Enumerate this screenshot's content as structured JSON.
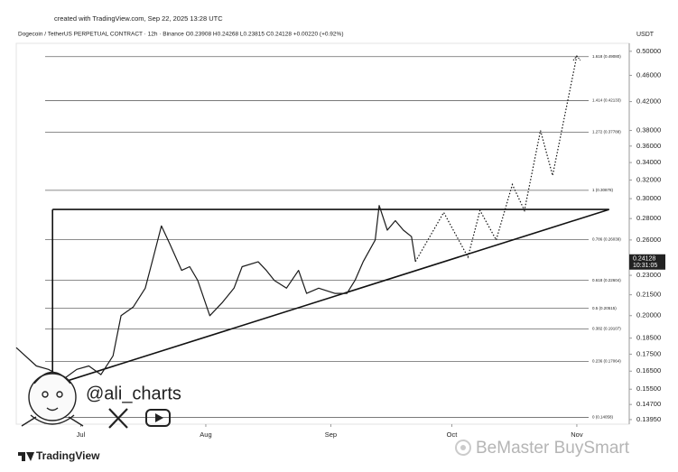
{
  "chart_data": {
    "type": "line",
    "header": "created with TradingView.com, Sep 22, 2025 13:28 UTC",
    "title": "Dogecoin / TetherUS PERPETUAL CONTRACT · 12h · Binance   O0.23908  H0.24268  L0.23815  C0.24128  +0.00220 (+0.92%)",
    "y_unit": "USDT",
    "log_scale": true,
    "xlim": [
      166,
      318
    ],
    "xticks": [
      {
        "value": 182,
        "label": "Jul"
      },
      {
        "value": 213,
        "label": "Aug"
      },
      {
        "value": 244,
        "label": "Sep"
      },
      {
        "value": 274,
        "label": "Oct"
      },
      {
        "value": 305,
        "label": "Nov"
      }
    ],
    "ylim": [
      0.1373,
      0.514
    ],
    "yticks": [
      {
        "value": 0.5,
        "label": "0.50000"
      },
      {
        "value": 0.46,
        "label": "0.46000"
      },
      {
        "value": 0.42,
        "label": "0.42000"
      },
      {
        "value": 0.38,
        "label": "0.38000"
      },
      {
        "value": 0.36,
        "label": "0.36000"
      },
      {
        "value": 0.34,
        "label": "0.34000"
      },
      {
        "value": 0.32,
        "label": "0.32000"
      },
      {
        "value": 0.3,
        "label": "0.30000"
      },
      {
        "value": 0.28,
        "label": "0.28000"
      },
      {
        "value": 0.26,
        "label": "0.26000"
      },
      {
        "value": 0.23,
        "label": "0.23000"
      },
      {
        "value": 0.215,
        "label": "0.21500"
      },
      {
        "value": 0.2,
        "label": "0.20000"
      },
      {
        "value": 0.185,
        "label": "0.18500"
      },
      {
        "value": 0.175,
        "label": "0.17500"
      },
      {
        "value": 0.165,
        "label": "0.16500"
      },
      {
        "value": 0.155,
        "label": "0.15500"
      },
      {
        "value": 0.147,
        "label": "0.14700"
      },
      {
        "value": 0.1395,
        "label": "0.13950"
      }
    ],
    "series": [
      {
        "color": "#1a1a1a",
        "x": [
          166,
          171,
          174,
          178,
          181,
          184,
          187,
          190,
          192,
          195,
          198,
          200,
          202,
          204,
          207,
          209,
          211,
          214,
          217,
          220,
          222,
          226,
          228,
          230,
          233,
          236,
          238,
          241,
          245,
          248,
          250,
          252,
          255,
          256,
          258,
          260,
          262,
          264,
          265
        ],
        "values": [
          0.179,
          0.168,
          0.166,
          0.161,
          0.166,
          0.168,
          0.163,
          0.174,
          0.2,
          0.206,
          0.22,
          0.245,
          0.273,
          0.257,
          0.234,
          0.237,
          0.226,
          0.2,
          0.209,
          0.22,
          0.237,
          0.241,
          0.234,
          0.226,
          0.22,
          0.234,
          0.216,
          0.22,
          0.216,
          0.216,
          0.226,
          0.241,
          0.26,
          0.293,
          0.269,
          0.278,
          0.269,
          0.263,
          0.24128
        ]
      }
    ],
    "triangle": {
      "x": [
        175,
        175,
        313,
        175
      ],
      "values": [
        0.289,
        0.157,
        0.289,
        0.289
      ]
    },
    "projection": {
      "x": [
        265,
        272,
        278,
        281,
        285,
        289,
        292,
        296,
        299,
        305
      ],
      "values": [
        0.24128,
        0.286,
        0.245,
        0.288,
        0.26,
        0.315,
        0.288,
        0.38,
        0.325,
        0.492
      ]
    },
    "fib_levels": [
      {
        "value": 0.4908,
        "label": "1.618 (0.49080)"
      },
      {
        "value": 0.42133,
        "label": "1.414 (0.42133)"
      },
      {
        "value": 0.37788,
        "label": "1.272 (0.37788)"
      },
      {
        "value": 0.30878,
        "label": "1 (0.30878)"
      },
      {
        "value": 0.26039,
        "label": "0.786 (0.26039)"
      },
      {
        "value": 0.22604,
        "label": "0.618 (0.22604)"
      },
      {
        "value": 0.20515,
        "label": "0.5 (0.20515)"
      },
      {
        "value": 0.19107,
        "label": "0.382 (0.19107)"
      },
      {
        "value": 0.17064,
        "label": "0.236 (0.17064)"
      },
      {
        "value": 0.14058,
        "label": "0 (0.14058)"
      }
    ],
    "last_price": {
      "value": 0.24128,
      "label": "0.24128"
    },
    "countdown": "10:31:05",
    "handle": "@ali_charts",
    "brand": "TradingView",
    "watermark": "BeMaster BuySmart"
  }
}
